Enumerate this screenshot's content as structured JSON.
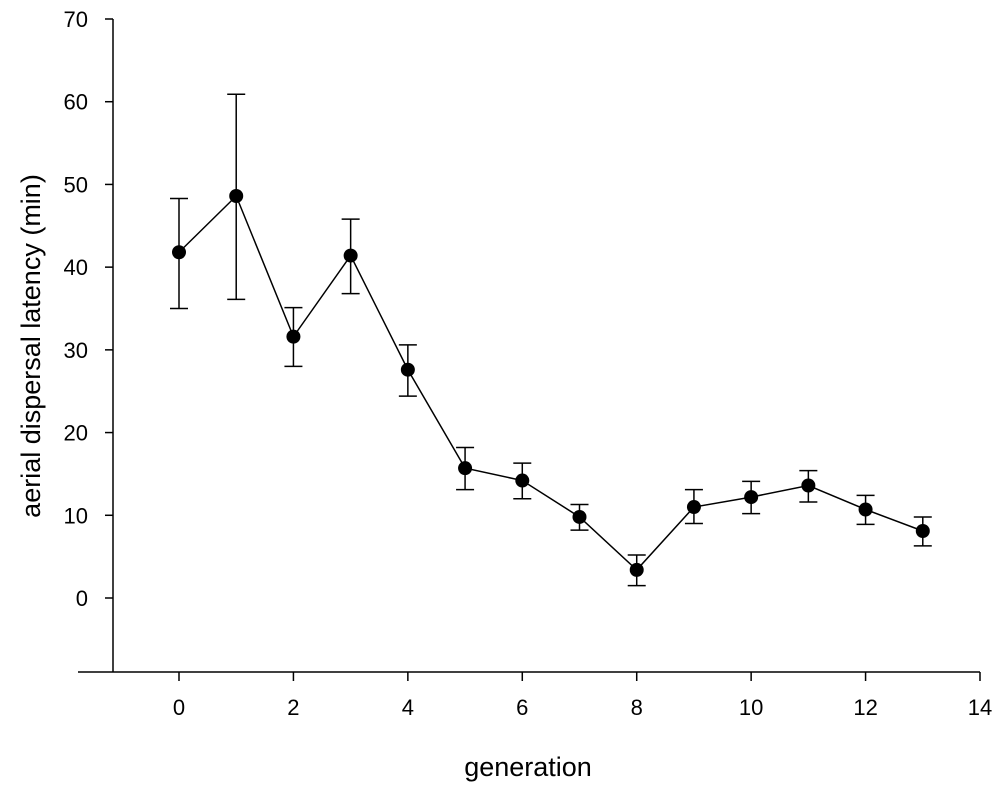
{
  "chart_data": {
    "type": "scatter",
    "title": "",
    "xlabel": "generation",
    "ylabel": "aerial dispersal latency (min)",
    "xlim": [
      -1.2,
      14
    ],
    "ylim": [
      -9,
      70
    ],
    "xticks": [
      0,
      2,
      4,
      6,
      8,
      10,
      12,
      14
    ],
    "yticks": [
      0,
      10,
      20,
      30,
      40,
      50,
      60,
      70
    ],
    "xtick_labels": [
      "0",
      "2",
      "4",
      "6",
      "8",
      "10",
      "12",
      "14"
    ],
    "ytick_labels": [
      "0",
      "10",
      "20",
      "30",
      "40",
      "50",
      "60",
      "70"
    ],
    "grid": false,
    "legend": "none",
    "series": [
      {
        "x": [
          0,
          1,
          2,
          3,
          4,
          5,
          6,
          7,
          8,
          9,
          10,
          11,
          12,
          13
        ],
        "y": [
          41.8,
          48.6,
          31.6,
          41.4,
          27.6,
          15.7,
          14.2,
          9.8,
          3.4,
          11.0,
          12.2,
          13.6,
          10.7,
          8.1
        ],
        "err_low": [
          35.0,
          36.1,
          28.0,
          36.8,
          24.4,
          13.1,
          12.0,
          8.2,
          1.5,
          9.0,
          10.2,
          11.6,
          8.9,
          6.3
        ],
        "err_high": [
          48.3,
          60.9,
          35.1,
          45.8,
          30.6,
          18.2,
          16.3,
          11.3,
          5.2,
          13.1,
          14.1,
          15.4,
          12.4,
          9.8
        ],
        "color": "#000000",
        "marker": "circle"
      }
    ]
  }
}
